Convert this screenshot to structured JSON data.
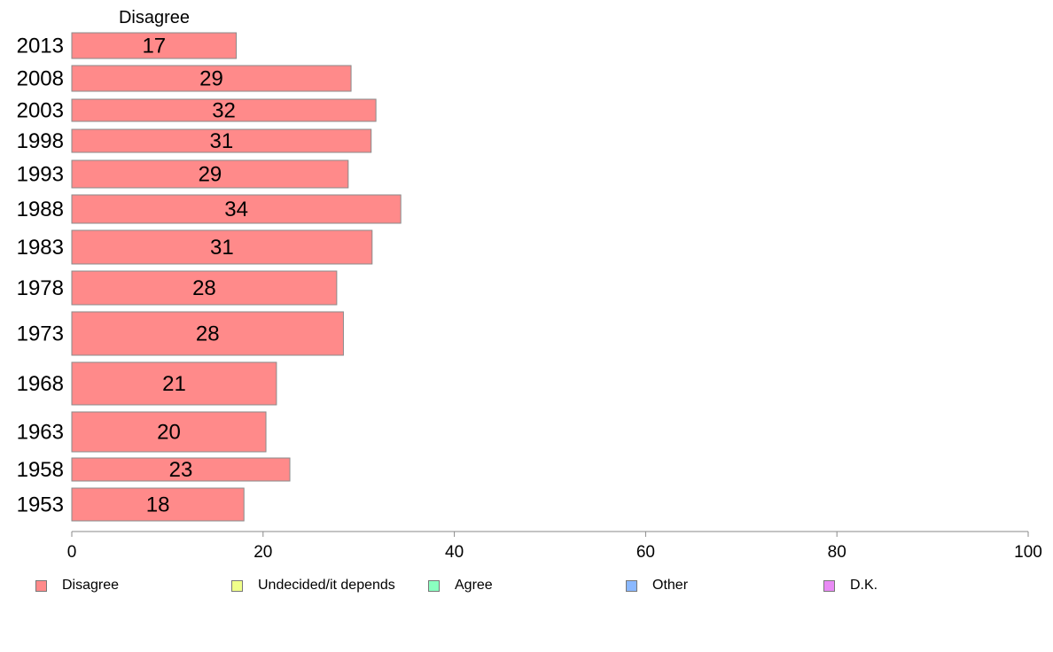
{
  "chart_data": {
    "type": "bar",
    "orientation": "horizontal",
    "column_header": "Disagree",
    "categories": [
      "2013",
      "2008",
      "2003",
      "1998",
      "1993",
      "1988",
      "1983",
      "1978",
      "1973",
      "1968",
      "1963",
      "1958",
      "1953"
    ],
    "series": [
      {
        "name": "Disagree",
        "color": "#ff8a8a",
        "values": [
          17.2,
          29.2,
          31.8,
          31.3,
          28.9,
          34.4,
          31.4,
          27.7,
          28.4,
          21.4,
          20.3,
          22.8,
          18.0
        ],
        "labels": [
          "17",
          "29",
          "32",
          "31",
          "29",
          "34",
          "31",
          "28",
          "28",
          "21",
          "20",
          "23",
          "18"
        ]
      }
    ],
    "xlim": [
      0,
      100
    ],
    "xticks": [
      "0",
      "20",
      "40",
      "60",
      "80",
      "100"
    ],
    "xlabel": "",
    "ylabel": "",
    "grid": false,
    "legend_position": "bottom",
    "legend": [
      {
        "label": "Disagree",
        "color": "#ff8a8a"
      },
      {
        "label": "Undecided/it depends",
        "color": "#f0ff8a"
      },
      {
        "label": "Agree",
        "color": "#8affc0"
      },
      {
        "label": "Other",
        "color": "#8ab8ff"
      },
      {
        "label": "D.K.",
        "color": "#e98af5"
      }
    ]
  }
}
